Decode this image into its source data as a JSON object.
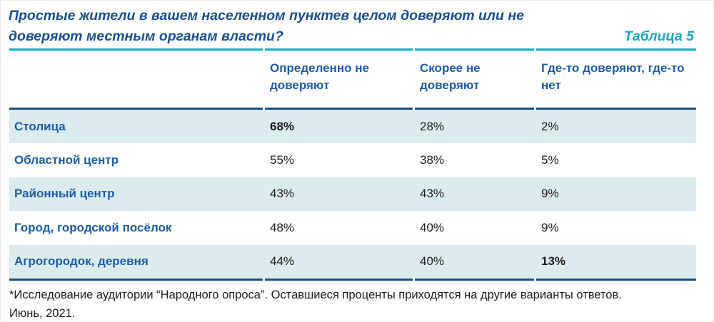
{
  "title": {
    "line1": "Простые жители в вашем населенном пунктев целом доверяют или не",
    "line2": "доверяют местным органам власти?",
    "table_label": "Таблица 5"
  },
  "table": {
    "columns": [
      "Определенно не доверяют",
      "Скорее не доверяют",
      "Где-то доверяют, где-то нет"
    ],
    "rows": [
      {
        "label": "Столица",
        "values": [
          "68%",
          "28%",
          "2%"
        ]
      },
      {
        "label": "Областной центр",
        "values": [
          "55%",
          "38%",
          "5%"
        ]
      },
      {
        "label": "Районный центр",
        "values": [
          "43%",
          "43%",
          "9%"
        ]
      },
      {
        "label": "Город, городской посёлок",
        "values": [
          "48%",
          "40%",
          "9%"
        ]
      },
      {
        "label": "Агрогородок, деревня",
        "values": [
          "44%",
          "40%",
          "13%"
        ]
      }
    ]
  },
  "footnote": {
    "line1": "*Исследование аудитории “Народного опроса”. Оставшиеся проценты приходятся на другие варианты ответов.",
    "line2": "Июнь, 2021."
  },
  "colors": {
    "title_blue": "#1b4f91",
    "header_blue": "#1d5ca6",
    "accent_teal": "#00b1b9",
    "table_label_teal": "#16a5bf",
    "rule_navy": "#1c4d7d",
    "row_highlight": "#dcebee",
    "text_dark": "#1d1d1b"
  },
  "chart_data": {
    "type": "table",
    "title": "Простые жители в вашем населенном пунктев целом доверяют или не доверяют местным органам власти?",
    "table_number": "Таблица 5",
    "categories": [
      "Столица",
      "Областной центр",
      "Районный центр",
      "Город, городской посёлок",
      "Агрогородок, деревня"
    ],
    "series": [
      {
        "name": "Определенно не доверяют",
        "values": [
          68,
          55,
          43,
          48,
          44
        ]
      },
      {
        "name": "Скорее не доверяют",
        "values": [
          28,
          38,
          43,
          40,
          40
        ]
      },
      {
        "name": "Где-то доверяют, где-то нет",
        "values": [
          2,
          5,
          9,
          9,
          13
        ]
      }
    ],
    "unit": "%",
    "emphasized_values": [
      {
        "row": "Столица",
        "column": "Определенно не доверяют",
        "value": 68
      },
      {
        "row": "Агрогородок, деревня",
        "column": "Где-то доверяют, где-то нет",
        "value": 13
      }
    ],
    "note": "*Исследование аудитории “Народного опроса”. Оставшиеся проценты приходятся на другие варианты ответов. Июнь, 2021."
  }
}
